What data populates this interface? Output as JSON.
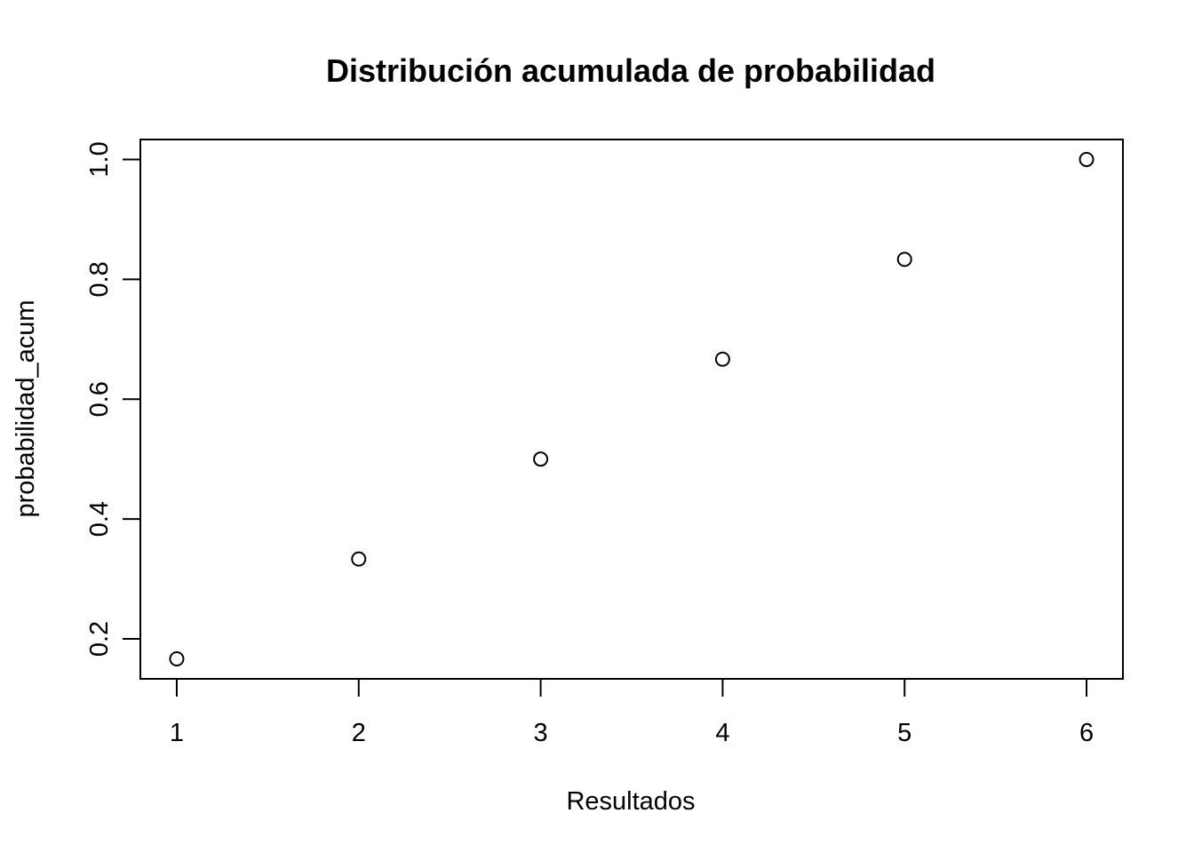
{
  "chart_data": {
    "type": "scatter",
    "title": "Distribución acumulada de probabilidad",
    "xlabel": "Resultados",
    "ylabel": "probabilidad_acum",
    "x": [
      1,
      2,
      3,
      4,
      5,
      6
    ],
    "y": [
      0.1667,
      0.3333,
      0.5,
      0.6667,
      0.8333,
      1.0
    ],
    "xticks": [
      1,
      2,
      3,
      4,
      5,
      6
    ],
    "xtick_labels": [
      "1",
      "2",
      "3",
      "4",
      "5",
      "6"
    ],
    "yticks": [
      0.2,
      0.4,
      0.6,
      0.8,
      1.0
    ],
    "ytick_labels": [
      "0.2",
      "0.4",
      "0.6",
      "0.8",
      "1.0"
    ],
    "xlim": [
      0.8,
      6.2
    ],
    "ylim": [
      0.1333,
      1.0333
    ],
    "grid": false,
    "legend": "none",
    "marker": "open-circle",
    "colors": {
      "marker": "#000000",
      "axis": "#000000",
      "background": "#ffffff"
    }
  }
}
